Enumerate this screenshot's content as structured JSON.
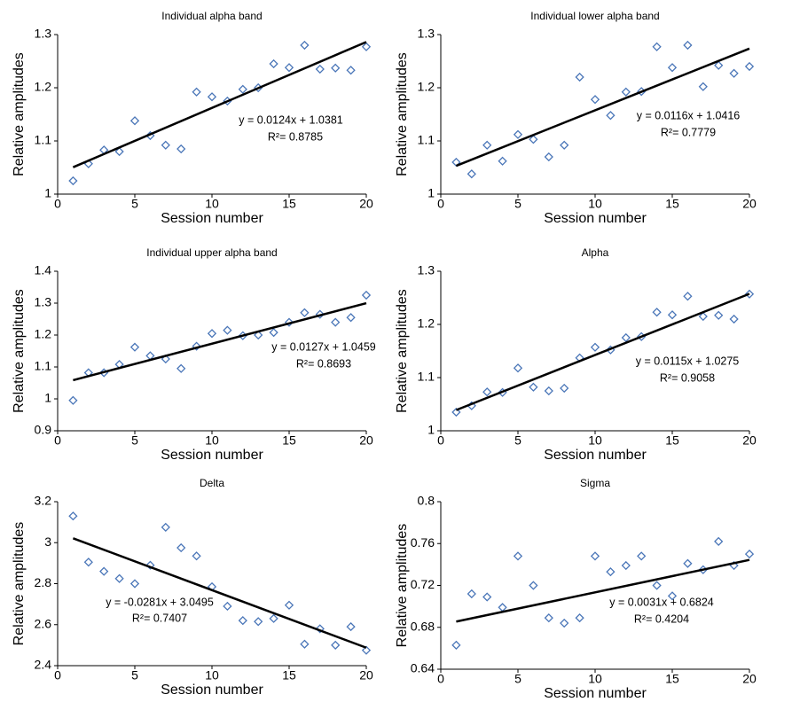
{
  "chart_data": [
    {
      "type": "scatter",
      "title": "Individual alpha band",
      "x_label": "Session number",
      "y_label": "Relative amplitudes",
      "xlim": [
        0,
        20
      ],
      "xticks": [
        0,
        5,
        10,
        15,
        20
      ],
      "ylim": [
        1,
        1.3
      ],
      "yticks": [
        1,
        1.1,
        1.2,
        1.3
      ],
      "x": [
        1,
        2,
        3,
        4,
        5,
        6,
        7,
        8,
        9,
        10,
        11,
        12,
        13,
        14,
        15,
        16,
        17,
        18,
        19,
        20
      ],
      "series": [
        {
          "color": "#4a76b8",
          "values": [
            1.025,
            1.057,
            1.083,
            1.08,
            1.138,
            1.11,
            1.092,
            1.085,
            1.192,
            1.183,
            1.175,
            1.197,
            1.2,
            1.245,
            1.238,
            1.28,
            1.235,
            1.237,
            1.233,
            1.277
          ]
        }
      ],
      "trendline": {
        "slope": 0.0124,
        "intercept": 1.0381,
        "equation": "y = 0.0124x + 1.0381",
        "r_squared": "R²= 0.8785"
      }
    },
    {
      "type": "scatter",
      "title": "Individual lower alpha band",
      "x_label": "Session number",
      "y_label": "Relative amplitudes",
      "xlim": [
        0,
        20
      ],
      "xticks": [
        0,
        5,
        10,
        15,
        20
      ],
      "ylim": [
        1,
        1.3
      ],
      "yticks": [
        1,
        1.1,
        1.2,
        1.3
      ],
      "x": [
        1,
        2,
        3,
        4,
        5,
        6,
        7,
        8,
        9,
        10,
        11,
        12,
        13,
        14,
        15,
        16,
        17,
        18,
        19,
        20
      ],
      "series": [
        {
          "color": "#4a76b8",
          "values": [
            1.06,
            1.038,
            1.092,
            1.062,
            1.112,
            1.103,
            1.07,
            1.092,
            1.22,
            1.178,
            1.148,
            1.192,
            1.193,
            1.277,
            1.238,
            1.28,
            1.202,
            1.242,
            1.227,
            1.24
          ]
        }
      ],
      "trendline": {
        "slope": 0.0116,
        "intercept": 1.0416,
        "equation": "y = 0.0116x + 1.0416",
        "r_squared": "R²= 0.7779"
      }
    },
    {
      "type": "scatter",
      "title": "Individual upper alpha band",
      "x_label": "Session number",
      "y_label": "Relative amplitudes",
      "xlim": [
        0,
        20
      ],
      "xticks": [
        0,
        5,
        10,
        15,
        20
      ],
      "ylim": [
        0.9,
        1.4
      ],
      "yticks": [
        0.9,
        1,
        1.1,
        1.2,
        1.3,
        1.4
      ],
      "x": [
        1,
        2,
        3,
        4,
        5,
        6,
        7,
        8,
        9,
        10,
        11,
        12,
        13,
        14,
        15,
        16,
        17,
        18,
        19,
        20
      ],
      "series": [
        {
          "color": "#4a76b8",
          "values": [
            0.995,
            1.082,
            1.082,
            1.108,
            1.162,
            1.135,
            1.125,
            1.095,
            1.165,
            1.205,
            1.215,
            1.198,
            1.2,
            1.208,
            1.24,
            1.27,
            1.265,
            1.24,
            1.255,
            1.325
          ]
        }
      ],
      "trendline": {
        "slope": 0.0127,
        "intercept": 1.0459,
        "equation": "y = 0.0127x + 1.0459",
        "r_squared": "R²= 0.8693"
      }
    },
    {
      "type": "scatter",
      "title": "Alpha",
      "x_label": "Session number",
      "y_label": "Relative amplitudes",
      "xlim": [
        0,
        20
      ],
      "xticks": [
        0,
        5,
        10,
        15,
        20
      ],
      "ylim": [
        1,
        1.3
      ],
      "yticks": [
        1,
        1.1,
        1.2,
        1.3
      ],
      "x": [
        1,
        2,
        3,
        4,
        5,
        6,
        7,
        8,
        9,
        10,
        11,
        12,
        13,
        14,
        15,
        16,
        17,
        18,
        19,
        20
      ],
      "series": [
        {
          "color": "#4a76b8",
          "values": [
            1.035,
            1.047,
            1.073,
            1.072,
            1.118,
            1.082,
            1.075,
            1.08,
            1.137,
            1.157,
            1.152,
            1.175,
            1.177,
            1.223,
            1.218,
            1.253,
            1.215,
            1.217,
            1.21,
            1.257
          ]
        }
      ],
      "trendline": {
        "slope": 0.0115,
        "intercept": 1.0275,
        "equation": "y = 0.0115x + 1.0275",
        "r_squared": "R²= 0.9058"
      }
    },
    {
      "type": "scatter",
      "title": "Delta",
      "x_label": "Session number",
      "y_label": "Relative amplitudes",
      "xlim": [
        0,
        20
      ],
      "xticks": [
        0,
        5,
        10,
        15,
        20
      ],
      "ylim": [
        2.4,
        3.2
      ],
      "yticks": [
        2.4,
        2.6,
        2.8,
        3,
        3.2
      ],
      "x": [
        1,
        2,
        3,
        4,
        5,
        6,
        7,
        8,
        9,
        10,
        11,
        12,
        13,
        14,
        15,
        16,
        17,
        18,
        19,
        20
      ],
      "series": [
        {
          "color": "#4a76b8",
          "values": [
            3.13,
            2.905,
            2.86,
            2.825,
            2.8,
            2.89,
            3.075,
            2.975,
            2.935,
            2.785,
            2.69,
            2.62,
            2.615,
            2.63,
            2.695,
            2.505,
            2.58,
            2.5,
            2.59,
            2.475
          ]
        }
      ],
      "trendline": {
        "slope": -0.0281,
        "intercept": 3.0495,
        "equation": "y = -0.0281x + 3.0495",
        "r_squared": "R²= 0.7407"
      }
    },
    {
      "type": "scatter",
      "title": "Sigma",
      "x_label": "Session number",
      "y_label": "Relative amplitudes",
      "xlim": [
        0,
        20
      ],
      "xticks": [
        0,
        5,
        10,
        15,
        20
      ],
      "ylim": [
        0.64,
        0.8
      ],
      "yticks": [
        0.64,
        0.68,
        0.72,
        0.76,
        0.8
      ],
      "x": [
        1,
        2,
        3,
        4,
        5,
        6,
        7,
        8,
        9,
        10,
        11,
        12,
        13,
        14,
        15,
        16,
        17,
        18,
        19,
        20
      ],
      "series": [
        {
          "color": "#4a76b8",
          "values": [
            0.663,
            0.712,
            0.709,
            0.699,
            0.748,
            0.72,
            0.689,
            0.684,
            0.689,
            0.748,
            0.733,
            0.739,
            0.748,
            0.72,
            0.71,
            0.741,
            0.735,
            0.762,
            0.739,
            0.75
          ]
        }
      ],
      "trendline": {
        "slope": 0.0031,
        "intercept": 0.6824,
        "equation": "y = 0.0031x + 0.6824",
        "r_squared": "R²= 0.4204"
      }
    }
  ]
}
